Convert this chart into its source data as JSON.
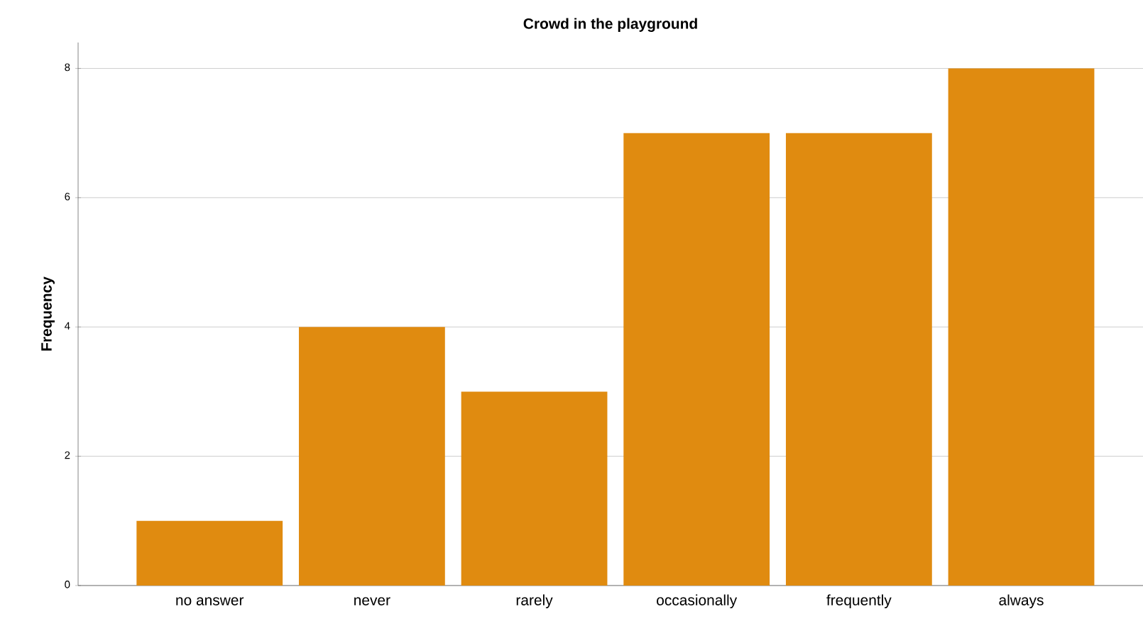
{
  "chart_data": {
    "type": "bar",
    "title": "Crowd in the playground",
    "ylabel": "Frequency",
    "categories": [
      "no answer",
      "never",
      "rarely",
      "occasionally",
      "frequently",
      "always"
    ],
    "values": [
      1,
      4,
      3,
      7,
      7,
      8
    ],
    "color": "#e08b10",
    "ylim": [
      0,
      8.4
    ],
    "yticks": [
      0,
      2,
      4,
      6,
      8
    ],
    "grid": "y"
  }
}
